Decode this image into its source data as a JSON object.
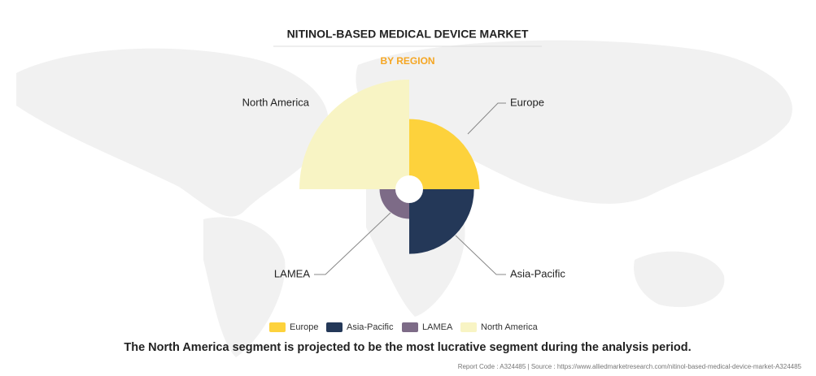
{
  "chart_data": {
    "type": "polar-area",
    "title": "NITINOL-BASED MEDICAL DEVICE MARKET",
    "subtitle": "BY REGION",
    "categories": [
      "Europe",
      "Asia-Pacific",
      "LAMEA",
      "North America"
    ],
    "values": [
      64,
      59,
      27,
      100
    ],
    "colors": [
      "#fdd23c",
      "#243858",
      "#7d6b87",
      "#f8f4c4"
    ],
    "legend": "bottom",
    "footnote": "The North America segment is projected to be the most lucrative segment during the analysis period.",
    "source": "Report Code : A324485  |  Source : https://www.alliedmarketresearch.com/nitinol-based-medical-device-market-A324485"
  }
}
